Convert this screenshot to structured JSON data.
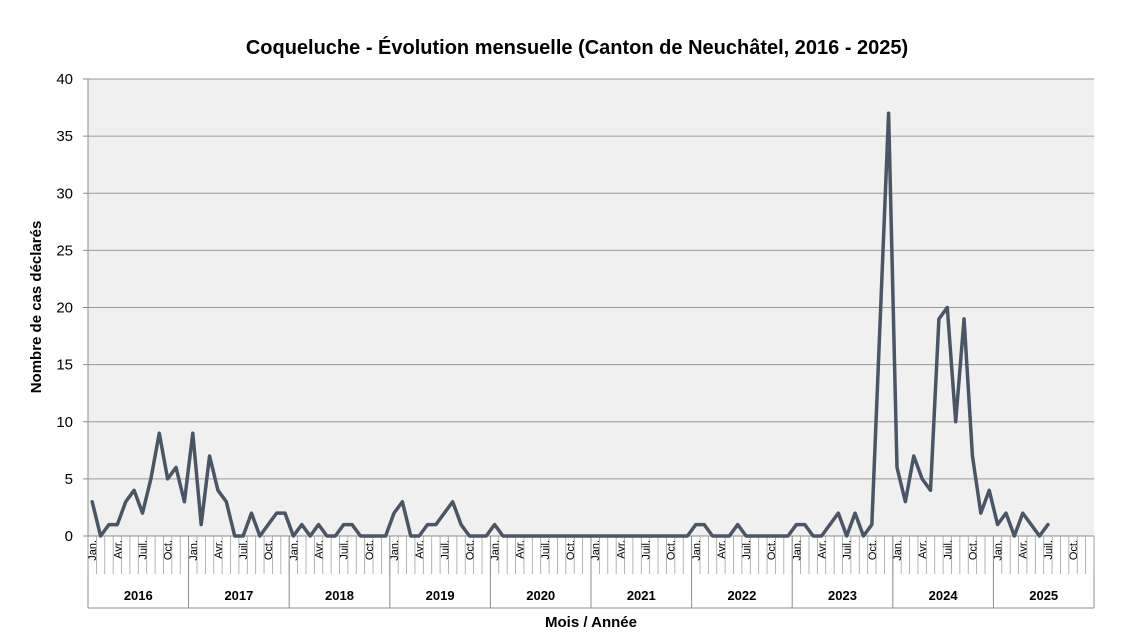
{
  "chart_data": {
    "type": "line",
    "title": "Coqueluche - Évolution mensuelle (Canton de Neuchâtel, 2016 - 2025)",
    "xlabel": "Mois / Année",
    "ylabel": "Nombre de cas déclarés",
    "ylim": [
      0,
      40
    ],
    "yticks": [
      0,
      5,
      10,
      15,
      20,
      25,
      30,
      35,
      40
    ],
    "grid": true,
    "years": [
      "2016",
      "2017",
      "2018",
      "2019",
      "2020",
      "2021",
      "2022",
      "2023",
      "2024",
      "2025"
    ],
    "month_tick_labels": [
      "Jan.",
      "Avr.",
      "Juil.",
      "Oct."
    ],
    "line_color": "#4a5566",
    "plot_background": "#f0f0f0",
    "series": [
      {
        "values": [
          3,
          0,
          1,
          1,
          3,
          4,
          2,
          5,
          9,
          5,
          6,
          3,
          9,
          1,
          7,
          4,
          3,
          0,
          0,
          2,
          0,
          1,
          2,
          2,
          0,
          1,
          0,
          1,
          0,
          0,
          1,
          1,
          0,
          0,
          0,
          0,
          2,
          3,
          0,
          0,
          1,
          1,
          2,
          3,
          1,
          0,
          0,
          0,
          1,
          0,
          0,
          0,
          0,
          0,
          0,
          0,
          0,
          0,
          0,
          0,
          0,
          0,
          0,
          0,
          0,
          0,
          0,
          0,
          0,
          0,
          0,
          0,
          1,
          1,
          0,
          0,
          0,
          1,
          0,
          0,
          0,
          0,
          0,
          0,
          1,
          1,
          0,
          0,
          1,
          2,
          0,
          2,
          0,
          1,
          19,
          37,
          6,
          3,
          7,
          5,
          4,
          19,
          20,
          10,
          19,
          7,
          2,
          4,
          1,
          2,
          0,
          2,
          1,
          0,
          1
        ]
      }
    ]
  }
}
